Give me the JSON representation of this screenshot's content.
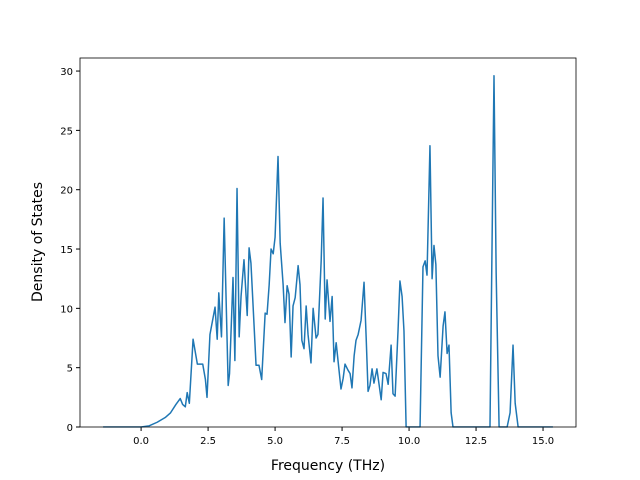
{
  "chart_data": {
    "type": "line",
    "xlabel": "Frequency (THz)",
    "ylabel": "Density of States",
    "x": [
      -1.42,
      0,
      0.3,
      0.6,
      0.9,
      1.1,
      1.3,
      1.46,
      1.55,
      1.65,
      1.72,
      1.8,
      1.94,
      2.1,
      2.3,
      2.4,
      2.46,
      2.57,
      2.76,
      2.84,
      2.9,
      3.0,
      3.1,
      3.25,
      3.3,
      3.43,
      3.5,
      3.58,
      3.66,
      3.73,
      3.84,
      3.96,
      4.03,
      4.1,
      4.29,
      4.4,
      4.5,
      4.63,
      4.7,
      4.78,
      4.85,
      4.93,
      5.0,
      5.11,
      5.19,
      5.3,
      5.37,
      5.45,
      5.52,
      5.6,
      5.67,
      5.75,
      5.86,
      5.93,
      6.0,
      6.08,
      6.16,
      6.23,
      6.34,
      6.42,
      6.53,
      6.6,
      6.72,
      6.79,
      6.87,
      6.94,
      7.05,
      7.13,
      7.2,
      7.28,
      7.39,
      7.46,
      7.54,
      7.61,
      7.72,
      7.8,
      7.87,
      7.95,
      8.02,
      8.1,
      8.21,
      8.32,
      8.4,
      8.47,
      8.54,
      8.62,
      8.69,
      8.8,
      8.96,
      9.03,
      9.14,
      9.22,
      9.33,
      9.4,
      9.48,
      9.59,
      9.66,
      9.74,
      9.81,
      9.89,
      10.41,
      10.52,
      10.6,
      10.67,
      10.78,
      10.86,
      10.93,
      11.0,
      11.08,
      11.16,
      11.27,
      11.34,
      11.42,
      11.49,
      11.57,
      11.64,
      13.02,
      13.1,
      13.17,
      13.25,
      13.36,
      13.66,
      13.77,
      13.88,
      13.96,
      14.07,
      15.37
    ],
    "series": [
      {
        "color": "#1f77b4",
        "values": [
          0,
          0,
          0.1,
          0.4,
          0.8,
          1.2,
          1.9,
          2.4,
          1.9,
          1.7,
          2.9,
          2.0,
          7.4,
          5.3,
          5.3,
          4.0,
          2.5,
          7.8,
          10.1,
          7.4,
          11.3,
          7.6,
          17.6,
          3.5,
          4.5,
          12.6,
          5.6,
          20.1,
          7.6,
          11.0,
          14.1,
          9.4,
          15.1,
          13.8,
          5.2,
          5.2,
          4.0,
          9.6,
          9.5,
          12.0,
          15.0,
          14.6,
          16.0,
          22.8,
          15.5,
          12.0,
          8.8,
          11.9,
          11.2,
          5.9,
          10.2,
          10.9,
          13.6,
          12.0,
          7.3,
          6.6,
          10.2,
          7.8,
          5.4,
          10.0,
          7.5,
          7.8,
          14.0,
          19.3,
          9.1,
          12.4,
          8.9,
          11.0,
          5.5,
          7.1,
          4.7,
          3.2,
          4.1,
          5.3,
          4.8,
          4.5,
          3.3,
          6.0,
          7.3,
          7.8,
          9.0,
          12.2,
          7.5,
          3.0,
          3.5,
          4.9,
          3.7,
          4.9,
          2.3,
          4.6,
          4.5,
          3.6,
          6.9,
          2.8,
          2.6,
          8.2,
          12.3,
          11.0,
          8.1,
          0,
          0,
          13.5,
          14.0,
          12.8,
          23.7,
          12.5,
          15.3,
          13.7,
          6.0,
          4.2,
          8.5,
          9.7,
          6.2,
          6.9,
          1.2,
          0,
          0,
          16.0,
          29.6,
          13.0,
          0,
          0,
          1.2,
          6.9,
          2.0,
          0,
          0
        ]
      }
    ],
    "xlim": [
      -2.28,
      16.23
    ],
    "xticks": [
      {
        "value": 0,
        "label": "0.0"
      },
      2.5,
      {
        "value": 5,
        "label": "5.0"
      },
      7.5,
      {
        "value": 10,
        "label": "10.0"
      },
      12.5,
      {
        "value": 15,
        "label": "15.0"
      }
    ],
    "ylim": [
      0,
      31.1
    ],
    "yticks": [
      0,
      5,
      10,
      15,
      20,
      25,
      30
    ]
  }
}
